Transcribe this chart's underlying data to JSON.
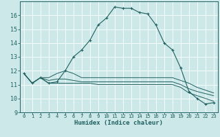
{
  "xlabel": "Humidex (Indice chaleur)",
  "xlim": [
    -0.5,
    23.5
  ],
  "ylim": [
    9,
    17
  ],
  "yticks": [
    9,
    10,
    11,
    12,
    13,
    14,
    15,
    16
  ],
  "xticks": [
    0,
    1,
    2,
    3,
    4,
    5,
    6,
    7,
    8,
    9,
    10,
    11,
    12,
    13,
    14,
    15,
    16,
    17,
    18,
    19,
    20,
    21,
    22,
    23
  ],
  "bg_color": "#cce8e8",
  "line_color": "#1f5f5f",
  "grid_color": "#b0d8d8",
  "line1_y": [
    11.8,
    11.1,
    11.5,
    11.1,
    11.2,
    12.0,
    13.0,
    13.5,
    14.2,
    15.3,
    15.8,
    16.6,
    16.5,
    16.5,
    16.2,
    16.1,
    15.3,
    14.0,
    13.5,
    12.2,
    10.5,
    10.0,
    9.6,
    9.7
  ],
  "line2_y": [
    11.8,
    11.1,
    11.5,
    11.5,
    11.8,
    12.0,
    11.8,
    11.5,
    11.5,
    11.5,
    11.5,
    11.5,
    11.5,
    11.5,
    11.5,
    11.5,
    11.5,
    11.5,
    11.5,
    11.3,
    11.1,
    10.8,
    10.6,
    10.4
  ],
  "line3_y": [
    11.8,
    11.1,
    11.5,
    11.3,
    11.4,
    11.4,
    11.3,
    11.2,
    11.2,
    11.2,
    11.2,
    11.2,
    11.2,
    11.2,
    11.2,
    11.2,
    11.2,
    11.2,
    11.2,
    11.0,
    10.7,
    10.5,
    10.35,
    10.2
  ],
  "line4_y": [
    11.8,
    11.1,
    11.5,
    11.1,
    11.1,
    11.1,
    11.1,
    11.1,
    11.1,
    11.0,
    11.0,
    11.0,
    11.0,
    11.0,
    11.0,
    11.0,
    11.0,
    11.0,
    11.0,
    10.8,
    10.4,
    10.2,
    10.0,
    9.8
  ]
}
